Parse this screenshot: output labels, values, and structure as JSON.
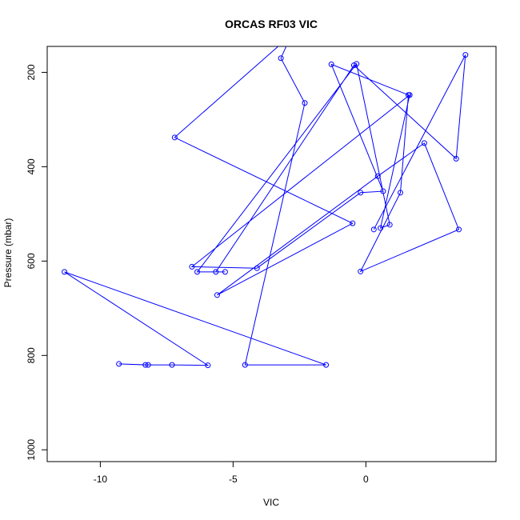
{
  "chart_data": {
    "type": "line",
    "title": "ORCAS RF03 VIC",
    "xlabel": "VIC",
    "ylabel": "Pressure (mbar)",
    "xlim": [
      -12.0,
      4.9
    ],
    "ylim": [
      1025,
      145
    ],
    "y_reversed": true,
    "x_ticks": [
      -10,
      -5,
      0
    ],
    "x_tick_labels": [
      "-10",
      "-5",
      "0"
    ],
    "y_ticks": [
      200,
      400,
      600,
      800,
      1000
    ],
    "y_tick_labels": [
      "200",
      "400",
      "600",
      "800",
      "1000"
    ],
    "series_color": "#0000ff",
    "x": [
      -8.2,
      -9.3,
      -8.3,
      -7.3,
      -5.95,
      -11.35,
      -1.5,
      -4.55,
      -2.3,
      -3.2,
      -2.8,
      -7.2,
      -0.5,
      -5.6,
      0.45,
      2.2,
      3.5,
      -0.2,
      1.3,
      1.6,
      -1.3,
      0.65,
      -0.2,
      -4.1,
      -6.55,
      1.65,
      0.55,
      0.9,
      -0.35,
      -6.35,
      -5.3,
      -5.65,
      -0.45,
      3.4,
      3.75,
      0.3
    ],
    "y": [
      820,
      818,
      820,
      820,
      821,
      623,
      820,
      820,
      265,
      170,
      120,
      338,
      520,
      672,
      420,
      350,
      533,
      622,
      455,
      248,
      183,
      452,
      455,
      615,
      612,
      248,
      530,
      523,
      182,
      623,
      623,
      623,
      185,
      383,
      163,
      533
    ]
  },
  "footer": {}
}
